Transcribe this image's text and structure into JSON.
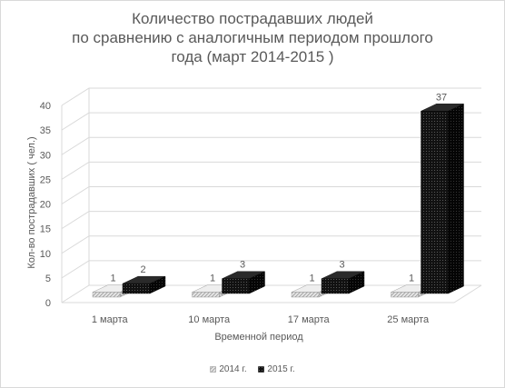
{
  "chart_data": {
    "type": "bar",
    "title_lines": [
      "Количество пострадавших людей",
      "по сравнению с аналогичным периодом прошлого",
      "года (март 2014-2015 )"
    ],
    "categories": [
      "1 марта",
      "10 марта",
      "17 марта",
      "25 марта"
    ],
    "series": [
      {
        "name": "2014 г.",
        "values": [
          1,
          1,
          1,
          1
        ],
        "data_labels": [
          "1",
          "1",
          "1",
          "1"
        ]
      },
      {
        "name": "2015 г.",
        "values": [
          2,
          3,
          3,
          37
        ],
        "data_labels": [
          "2",
          "3",
          "3",
          "37"
        ]
      }
    ],
    "xlabel": "Временной период",
    "ylabel": "Кол-во пострадавших ( чел.)",
    "ylim": [
      0,
      40
    ],
    "yticks": [
      "0",
      "5",
      "10",
      "15",
      "20",
      "25",
      "30",
      "35",
      "40"
    ],
    "grid": true,
    "style": "3d-clustered-column",
    "legend_position": "bottom",
    "colors": {
      "s2014": "#d0d0d0",
      "s2015": "#1a1a1a",
      "grid": "#d9d9d9",
      "text": "#595959"
    }
  }
}
